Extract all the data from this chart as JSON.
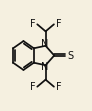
{
  "bg_color": "#f5f0e0",
  "bond_color": "#111111",
  "figsize": [
    0.92,
    1.11
  ],
  "dpi": 100,
  "bl": 0.13,
  "lw": 1.25,
  "fs": 7.0,
  "dbl_sep": 0.018,
  "dbl_trim": 0.12,
  "bcx": 0.255,
  "bcy": 0.5,
  "S_label": "S",
  "N_label": "N",
  "F_label": "F"
}
